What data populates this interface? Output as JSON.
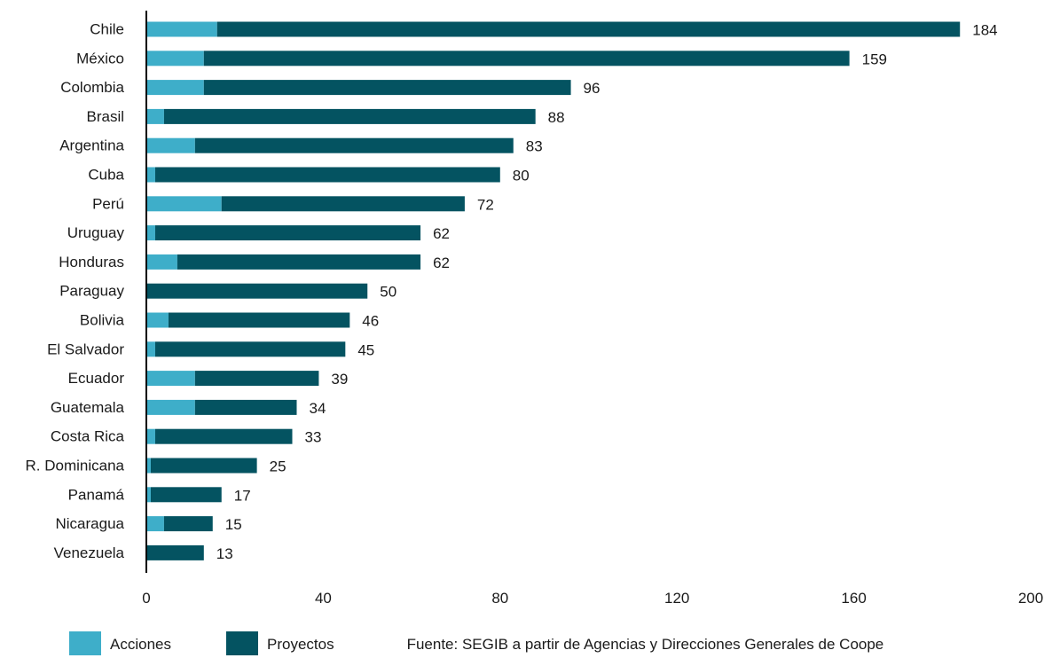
{
  "chart_data": {
    "type": "bar",
    "orientation": "horizontal",
    "stacked": true,
    "categories": [
      "Chile",
      "México",
      "Colombia",
      "Brasil",
      "Argentina",
      "Cuba",
      "Perú",
      "Uruguay",
      "Honduras",
      "Paraguay",
      "Bolivia",
      "El Salvador",
      "Ecuador",
      "Guatemala",
      "Costa Rica",
      "R. Dominicana",
      "Panamá",
      "Nicaragua",
      "Venezuela"
    ],
    "series": [
      {
        "name": "Acciones",
        "color": "#3eaec9",
        "values": [
          16,
          13,
          13,
          4,
          11,
          2,
          17,
          2,
          7,
          0,
          5,
          2,
          11,
          11,
          2,
          1,
          1,
          4,
          0
        ]
      },
      {
        "name": "Proyectos",
        "color": "#045361",
        "values": [
          168,
          146,
          83,
          84,
          72,
          78,
          55,
          60,
          55,
          50,
          41,
          43,
          28,
          23,
          31,
          24,
          16,
          11,
          13
        ]
      }
    ],
    "totals": [
      "184",
      "159",
      "96",
      "88",
      "83",
      "80",
      "72",
      "62",
      "62",
      "50",
      "46",
      "45",
      "39",
      "34",
      "33",
      "25",
      "17",
      "15",
      "13"
    ],
    "xlim": [
      0,
      200
    ],
    "xticks": [
      "0",
      "40",
      "80",
      "120",
      "160",
      "200"
    ],
    "grid": false,
    "legend_position": "bottom-left"
  },
  "source_note": "Fuente: SEGIB a partir de Agencias y Direcciones Generales de Coope"
}
